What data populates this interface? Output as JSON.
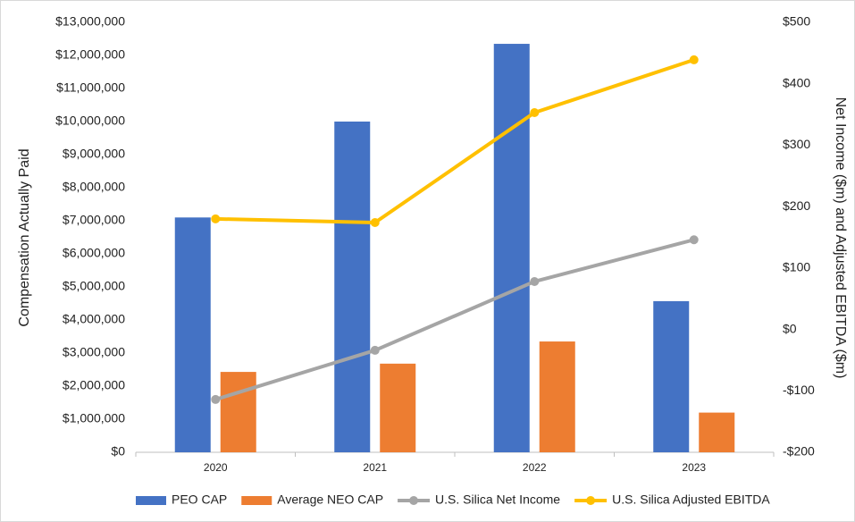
{
  "chart_data": {
    "type": "bar",
    "categories": [
      "2020",
      "2021",
      "2022",
      "2023"
    ],
    "y_label": "Compensation Actually Paid",
    "y2_label": "Net Income ($m) and Adjusted EBITDA ($m)",
    "series": [
      {
        "name": "PEO CAP",
        "type": "bar",
        "color": "#4472c4",
        "values": [
          7100000,
          10000000,
          12350000,
          4570000
        ]
      },
      {
        "name": "Average NEO CAP",
        "type": "bar",
        "color": "#ed7d31",
        "values": [
          2430000,
          2680000,
          3350000,
          1200000
        ]
      },
      {
        "name": "U.S. Silica Net Income",
        "type": "line",
        "axis": "y2",
        "color": "#a5a5a5",
        "values": [
          -114,
          -34,
          78,
          146
        ]
      },
      {
        "name": "U.S. Silica Adjusted EBITDA",
        "type": "line",
        "axis": "y2",
        "color": "#ffc000",
        "values": [
          180,
          174,
          353,
          439
        ]
      }
    ],
    "ylim": [
      0,
      13000000
    ],
    "yticks": [
      {
        "value": 0,
        "label": "$0"
      },
      {
        "value": 1000000,
        "label": "$1,000,000"
      },
      {
        "value": 2000000,
        "label": "$2,000,000"
      },
      {
        "value": 3000000,
        "label": "$3,000,000"
      },
      {
        "value": 4000000,
        "label": "$4,000,000"
      },
      {
        "value": 5000000,
        "label": "$5,000,000"
      },
      {
        "value": 6000000,
        "label": "$6,000,000"
      },
      {
        "value": 7000000,
        "label": "$7,000,000"
      },
      {
        "value": 8000000,
        "label": "$8,000,000"
      },
      {
        "value": 9000000,
        "label": "$9,000,000"
      },
      {
        "value": 10000000,
        "label": "$10,000,000"
      },
      {
        "value": 11000000,
        "label": "$11,000,000"
      },
      {
        "value": 12000000,
        "label": "$12,000,000"
      },
      {
        "value": 13000000,
        "label": "$13,000,000"
      }
    ],
    "y2lim": [
      -200,
      500
    ],
    "y2ticks": [
      {
        "value": -200,
        "label": "-$200"
      },
      {
        "value": -100,
        "label": "-$100"
      },
      {
        "value": 0,
        "label": "$0"
      },
      {
        "value": 100,
        "label": "$100"
      },
      {
        "value": 200,
        "label": "$200"
      },
      {
        "value": 300,
        "label": "$300"
      },
      {
        "value": 400,
        "label": "$400"
      },
      {
        "value": 500,
        "label": "$500"
      }
    ],
    "grid": false,
    "legend": "bottom"
  }
}
